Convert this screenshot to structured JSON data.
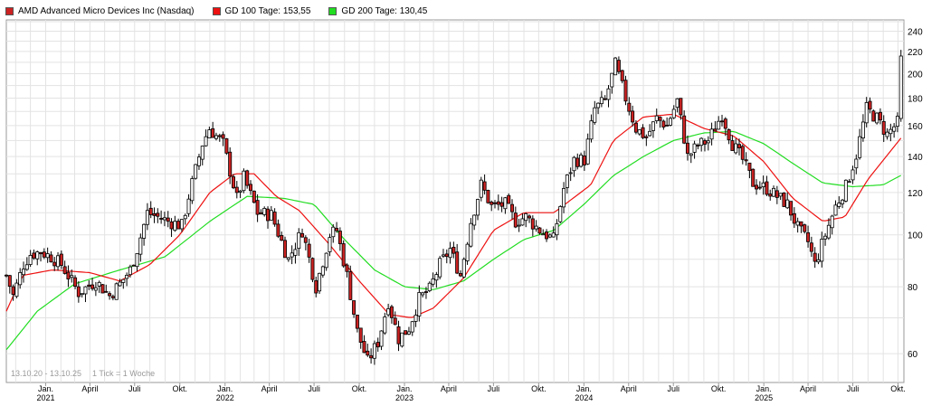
{
  "legend": {
    "stock": {
      "label": "AMD Advanced Micro Devices Inc (Nasdaq)",
      "color": "#cc2222"
    },
    "gd100": {
      "label": "GD 100 Tage: 153,55",
      "color": "#ee1111"
    },
    "gd200": {
      "label": "GD 200 Tage: 130,45",
      "color": "#22dd22"
    }
  },
  "footer": {
    "range": "13.10.20 - 13.10.25",
    "interval": "1 Tick = 1 Woche"
  },
  "chart_data": {
    "type": "candlestick",
    "y_scale": "log",
    "ylim": [
      53,
      252
    ],
    "xlim": [
      "2020-10-13",
      "2025-10-13"
    ],
    "grid": true,
    "y_ticks": [
      {
        "value": 60,
        "label": "60"
      },
      {
        "value": 80,
        "label": "80"
      },
      {
        "value": 100,
        "label": "100"
      },
      {
        "value": 120,
        "label": "120"
      },
      {
        "value": 140,
        "label": "140"
      },
      {
        "value": 160,
        "label": "160"
      },
      {
        "value": 180,
        "label": "180"
      },
      {
        "value": 200,
        "label": "200"
      },
      {
        "value": 220,
        "label": "220"
      },
      {
        "value": 240,
        "label": "240"
      }
    ],
    "x_ticks": [
      {
        "date": "2021-01-01",
        "label": "Jan.",
        "year": "2021"
      },
      {
        "date": "2021-04-01",
        "label": "April",
        "year": ""
      },
      {
        "date": "2021-07-01",
        "label": "Juli",
        "year": ""
      },
      {
        "date": "2021-10-01",
        "label": "Okt.",
        "year": ""
      },
      {
        "date": "2022-01-01",
        "label": "Jan.",
        "year": "2022"
      },
      {
        "date": "2022-04-01",
        "label": "April",
        "year": ""
      },
      {
        "date": "2022-07-01",
        "label": "Juli",
        "year": ""
      },
      {
        "date": "2022-10-01",
        "label": "Okt.",
        "year": ""
      },
      {
        "date": "2023-01-01",
        "label": "Jan.",
        "year": "2023"
      },
      {
        "date": "2023-04-01",
        "label": "April",
        "year": ""
      },
      {
        "date": "2023-07-01",
        "label": "Juli",
        "year": ""
      },
      {
        "date": "2023-10-01",
        "label": "Okt.",
        "year": ""
      },
      {
        "date": "2024-01-01",
        "label": "Jan.",
        "year": "2024"
      },
      {
        "date": "2024-04-01",
        "label": "April",
        "year": ""
      },
      {
        "date": "2024-07-01",
        "label": "Juli",
        "year": ""
      },
      {
        "date": "2024-10-01",
        "label": "Okt.",
        "year": ""
      },
      {
        "date": "2025-01-01",
        "label": "Jan.",
        "year": "2025"
      },
      {
        "date": "2025-04-01",
        "label": "April",
        "year": ""
      },
      {
        "date": "2025-07-01",
        "label": "Juli",
        "year": ""
      },
      {
        "date": "2025-10-01",
        "label": "Okt.",
        "year": ""
      }
    ],
    "price_anchors": [
      [
        "2020-10-13",
        84
      ],
      [
        "2020-10-27",
        77
      ],
      [
        "2020-11-17",
        88
      ],
      [
        "2020-12-01",
        92
      ],
      [
        "2020-12-22",
        93
      ],
      [
        "2021-01-12",
        91
      ],
      [
        "2021-02-02",
        88
      ],
      [
        "2021-03-09",
        78
      ],
      [
        "2021-04-13",
        82
      ],
      [
        "2021-05-11",
        77
      ],
      [
        "2021-06-01",
        81
      ],
      [
        "2021-06-22",
        86
      ],
      [
        "2021-07-06",
        94
      ],
      [
        "2021-07-27",
        110
      ],
      [
        "2021-08-17",
        108
      ],
      [
        "2021-09-07",
        106
      ],
      [
        "2021-10-05",
        104
      ],
      [
        "2021-10-19",
        118
      ],
      [
        "2021-11-16",
        148
      ],
      [
        "2021-11-30",
        158
      ],
      [
        "2021-12-28",
        148
      ],
      [
        "2022-01-25",
        117
      ],
      [
        "2022-02-08",
        128
      ],
      [
        "2022-03-08",
        110
      ],
      [
        "2022-04-05",
        109
      ],
      [
        "2022-05-10",
        90
      ],
      [
        "2022-06-07",
        102
      ],
      [
        "2022-07-05",
        80
      ],
      [
        "2022-08-02",
        100
      ],
      [
        "2022-08-16",
        102
      ],
      [
        "2022-09-06",
        84
      ],
      [
        "2022-09-27",
        66
      ],
      [
        "2022-10-18",
        58
      ],
      [
        "2022-11-08",
        63
      ],
      [
        "2022-11-29",
        75
      ],
      [
        "2022-12-20",
        64
      ],
      [
        "2023-01-10",
        67
      ],
      [
        "2023-01-31",
        76
      ],
      [
        "2023-02-21",
        79
      ],
      [
        "2023-03-14",
        88
      ],
      [
        "2023-04-04",
        94
      ],
      [
        "2023-04-25",
        84
      ],
      [
        "2023-05-16",
        106
      ],
      [
        "2023-06-06",
        124
      ],
      [
        "2023-06-27",
        113
      ],
      [
        "2023-07-25",
        114
      ],
      [
        "2023-08-15",
        106
      ],
      [
        "2023-09-05",
        108
      ],
      [
        "2023-10-03",
        102
      ],
      [
        "2023-10-31",
        98
      ],
      [
        "2023-11-21",
        122
      ],
      [
        "2023-12-12",
        138
      ],
      [
        "2024-01-02",
        138
      ],
      [
        "2024-01-23",
        172
      ],
      [
        "2024-02-13",
        178
      ],
      [
        "2024-03-05",
        208
      ],
      [
        "2024-03-26",
        180
      ],
      [
        "2024-04-16",
        158
      ],
      [
        "2024-05-07",
        152
      ],
      [
        "2024-05-28",
        165
      ],
      [
        "2024-06-18",
        160
      ],
      [
        "2024-07-09",
        178
      ],
      [
        "2024-07-30",
        140
      ],
      [
        "2024-08-20",
        147
      ],
      [
        "2024-09-10",
        150
      ],
      [
        "2024-10-08",
        168
      ],
      [
        "2024-10-29",
        148
      ],
      [
        "2024-11-19",
        138
      ],
      [
        "2024-12-10",
        125
      ],
      [
        "2025-01-07",
        122
      ],
      [
        "2025-01-28",
        118
      ],
      [
        "2025-02-18",
        114
      ],
      [
        "2025-03-11",
        103
      ],
      [
        "2025-04-01",
        97
      ],
      [
        "2025-04-15",
        88
      ],
      [
        "2025-05-06",
        100
      ],
      [
        "2025-05-27",
        113
      ],
      [
        "2025-06-17",
        123
      ],
      [
        "2025-07-08",
        141
      ],
      [
        "2025-07-29",
        172
      ],
      [
        "2025-08-19",
        165
      ],
      [
        "2025-09-09",
        154
      ],
      [
        "2025-09-30",
        162
      ],
      [
        "2025-10-07",
        212
      ],
      [
        "2025-10-13",
        216
      ]
    ],
    "gd100_anchors": [
      [
        "2020-10-13",
        72
      ],
      [
        "2020-11-15",
        84
      ],
      [
        "2021-01-15",
        86
      ],
      [
        "2021-04-01",
        85
      ],
      [
        "2021-06-01",
        82
      ],
      [
        "2021-08-01",
        88
      ],
      [
        "2021-10-01",
        100
      ],
      [
        "2021-12-01",
        120
      ],
      [
        "2022-01-20",
        130
      ],
      [
        "2022-03-01",
        130
      ],
      [
        "2022-04-15",
        118
      ],
      [
        "2022-06-01",
        111
      ],
      [
        "2022-08-01",
        96
      ],
      [
        "2022-10-01",
        82
      ],
      [
        "2022-12-01",
        71
      ],
      [
        "2023-01-15",
        70
      ],
      [
        "2023-03-01",
        73
      ],
      [
        "2023-05-01",
        83
      ],
      [
        "2023-07-01",
        102
      ],
      [
        "2023-09-01",
        110
      ],
      [
        "2023-11-01",
        110
      ],
      [
        "2024-01-15",
        124
      ],
      [
        "2024-03-01",
        150
      ],
      [
        "2024-05-01",
        166
      ],
      [
        "2024-07-01",
        168
      ],
      [
        "2024-09-01",
        158
      ],
      [
        "2024-11-01",
        153
      ],
      [
        "2025-01-01",
        137
      ],
      [
        "2025-03-01",
        117
      ],
      [
        "2025-05-01",
        106
      ],
      [
        "2025-06-15",
        108
      ],
      [
        "2025-08-01",
        127
      ],
      [
        "2025-10-13",
        154
      ]
    ],
    "gd200_anchors": [
      [
        "2020-10-13",
        61
      ],
      [
        "2020-12-15",
        72
      ],
      [
        "2021-03-01",
        81
      ],
      [
        "2021-06-01",
        86
      ],
      [
        "2021-09-01",
        91
      ],
      [
        "2021-12-01",
        106
      ],
      [
        "2022-02-15",
        118
      ],
      [
        "2022-05-01",
        117
      ],
      [
        "2022-07-01",
        114
      ],
      [
        "2022-09-01",
        98
      ],
      [
        "2022-11-01",
        86
      ],
      [
        "2023-01-01",
        80
      ],
      [
        "2023-03-01",
        79
      ],
      [
        "2023-05-01",
        82
      ],
      [
        "2023-07-01",
        90
      ],
      [
        "2023-09-01",
        98
      ],
      [
        "2023-11-01",
        102
      ],
      [
        "2024-01-01",
        114
      ],
      [
        "2024-03-01",
        129
      ],
      [
        "2024-05-01",
        140
      ],
      [
        "2024-07-01",
        150
      ],
      [
        "2024-09-01",
        155
      ],
      [
        "2024-11-01",
        156
      ],
      [
        "2025-01-01",
        148
      ],
      [
        "2025-03-01",
        136
      ],
      [
        "2025-05-01",
        125
      ],
      [
        "2025-07-01",
        123
      ],
      [
        "2025-09-01",
        124
      ],
      [
        "2025-10-13",
        130
      ]
    ]
  }
}
